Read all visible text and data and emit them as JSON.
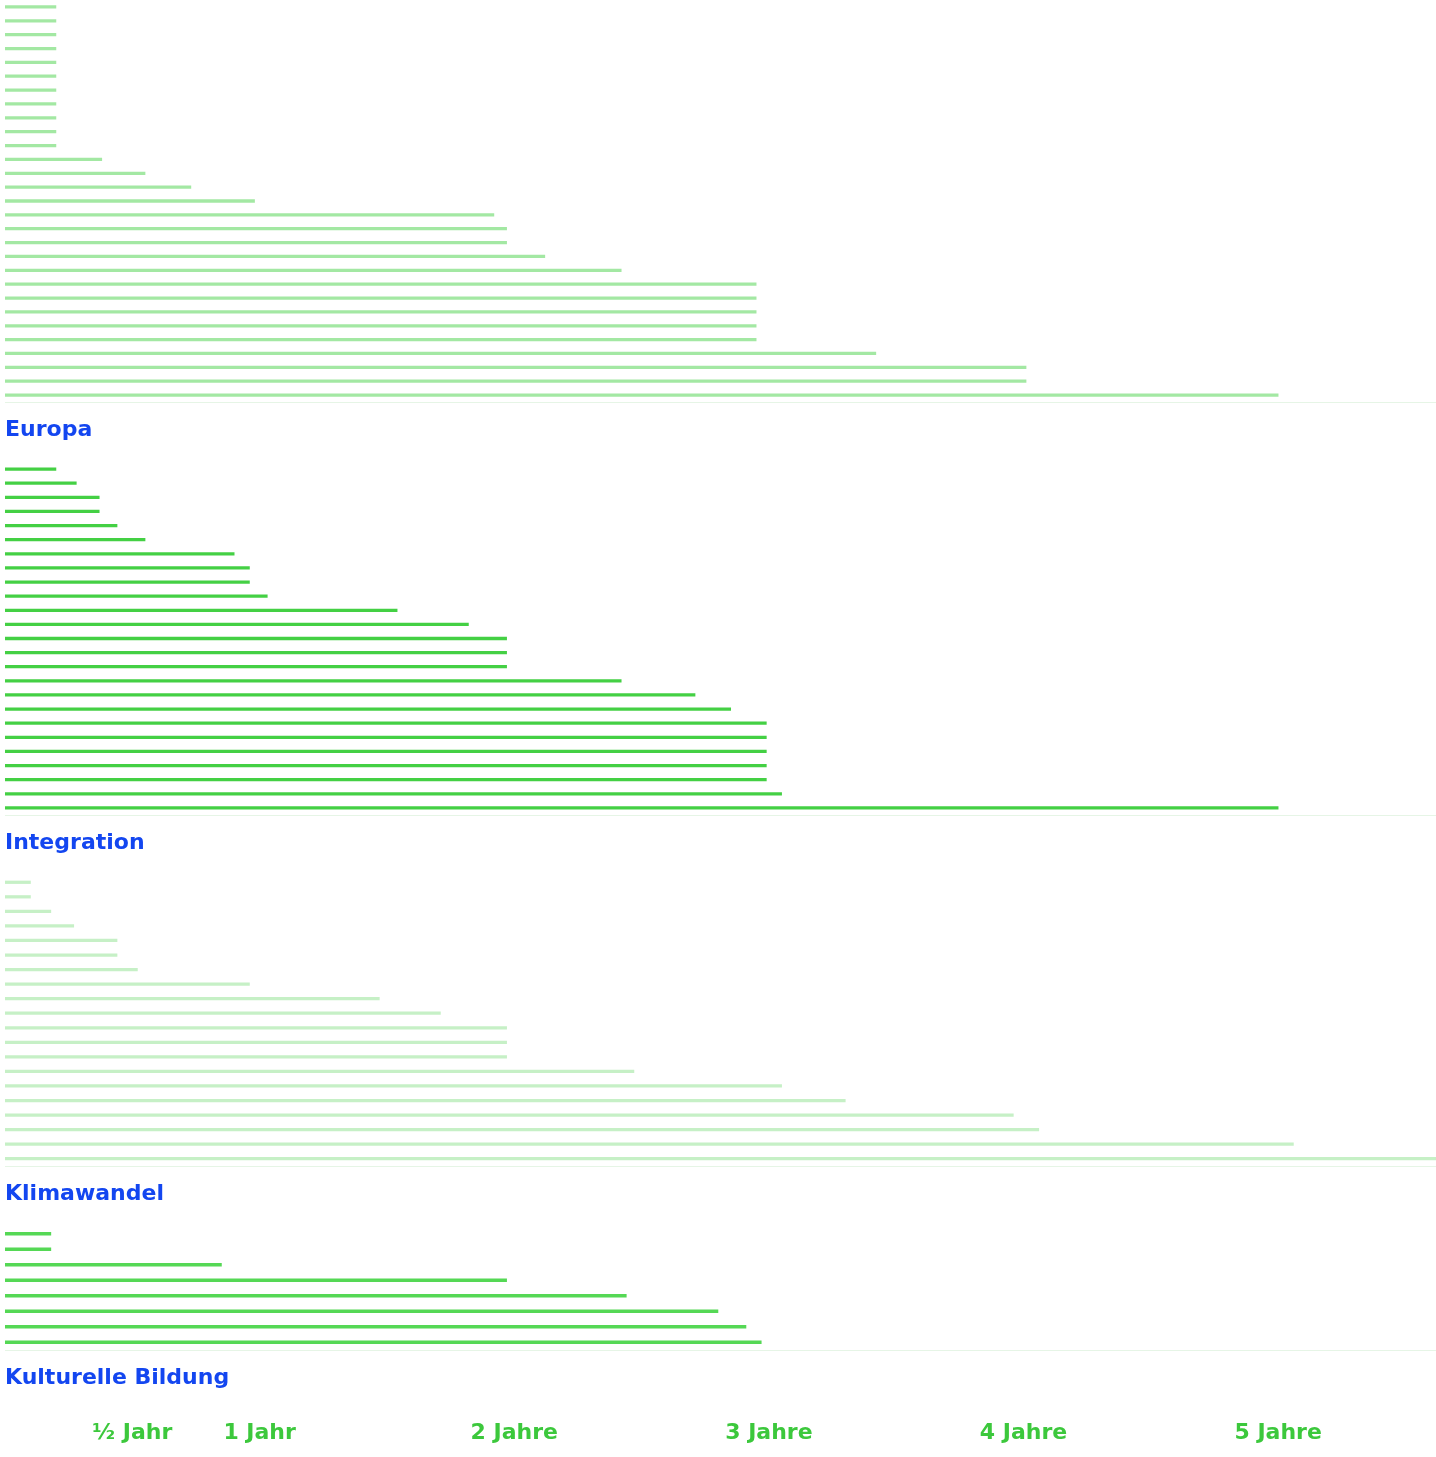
{
  "chart_data": [
    {
      "type": "bar",
      "orientation": "horizontal",
      "title": "Europa",
      "tick_labels": false,
      "grid": false,
      "legend": false,
      "color": "#a3e8a3",
      "xlim": [
        0,
        5.62
      ],
      "categories": [
        null,
        null,
        null,
        null,
        null,
        null,
        null,
        null,
        null,
        null,
        null,
        null,
        null,
        null,
        null,
        null,
        null,
        null,
        null,
        null,
        null,
        null,
        null,
        null,
        null,
        null,
        null,
        null,
        null
      ],
      "values": [
        0.2,
        0.2,
        0.2,
        0.2,
        0.2,
        0.2,
        0.2,
        0.2,
        0.2,
        0.2,
        0.2,
        0.38,
        0.55,
        0.73,
        0.98,
        1.92,
        1.97,
        1.97,
        2.12,
        2.42,
        2.95,
        2.95,
        2.95,
        2.95,
        2.95,
        3.42,
        4.01,
        4.01,
        5.0
      ]
    },
    {
      "type": "bar",
      "orientation": "horizontal",
      "title": "Integration",
      "tick_labels": false,
      "grid": false,
      "legend": false,
      "color": "#44d044",
      "xlim": [
        0,
        5.62
      ],
      "categories": [
        null,
        null,
        null,
        null,
        null,
        null,
        null,
        null,
        null,
        null,
        null,
        null,
        null,
        null,
        null,
        null,
        null,
        null,
        null,
        null,
        null,
        null,
        null,
        null,
        null
      ],
      "values": [
        0.2,
        0.28,
        0.37,
        0.37,
        0.44,
        0.55,
        0.9,
        0.96,
        0.96,
        1.03,
        1.54,
        1.82,
        1.97,
        1.97,
        1.97,
        2.42,
        2.71,
        2.85,
        2.99,
        2.99,
        2.99,
        2.99,
        2.99,
        3.05,
        5.0
      ]
    },
    {
      "type": "bar",
      "orientation": "horizontal",
      "title": "Klimawandel",
      "tick_labels": false,
      "grid": false,
      "legend": false,
      "color": "#c6f0c6",
      "xlim": [
        0,
        5.62
      ],
      "categories": [
        null,
        null,
        null,
        null,
        null,
        null,
        null,
        null,
        null,
        null,
        null,
        null,
        null,
        null,
        null,
        null,
        null,
        null,
        null,
        null
      ],
      "values": [
        0.1,
        0.1,
        0.18,
        0.27,
        0.44,
        0.44,
        0.52,
        0.96,
        1.47,
        1.71,
        1.97,
        1.97,
        1.97,
        2.47,
        3.05,
        3.3,
        3.96,
        4.06,
        5.06,
        5.62
      ]
    },
    {
      "type": "bar",
      "orientation": "horizontal",
      "title": "Kulturelle Bildung",
      "tick_labels": "x",
      "grid": false,
      "legend": false,
      "color": "#55d855",
      "xlim": [
        0,
        5.62
      ],
      "xticks": [
        {
          "value": 0.5,
          "label": "½ Jahr"
        },
        {
          "value": 1,
          "label": "1 Jahr"
        },
        {
          "value": 2,
          "label": "2 Jahre"
        },
        {
          "value": 3,
          "label": "3 Jahre"
        },
        {
          "value": 4,
          "label": "4 Jahre"
        },
        {
          "value": 5,
          "label": "5 Jahre"
        }
      ],
      "categories": [
        null,
        null,
        null,
        null,
        null,
        null,
        null,
        null
      ],
      "values": [
        0.18,
        0.18,
        0.85,
        1.97,
        2.44,
        2.8,
        2.91,
        2.97
      ]
    }
  ]
}
